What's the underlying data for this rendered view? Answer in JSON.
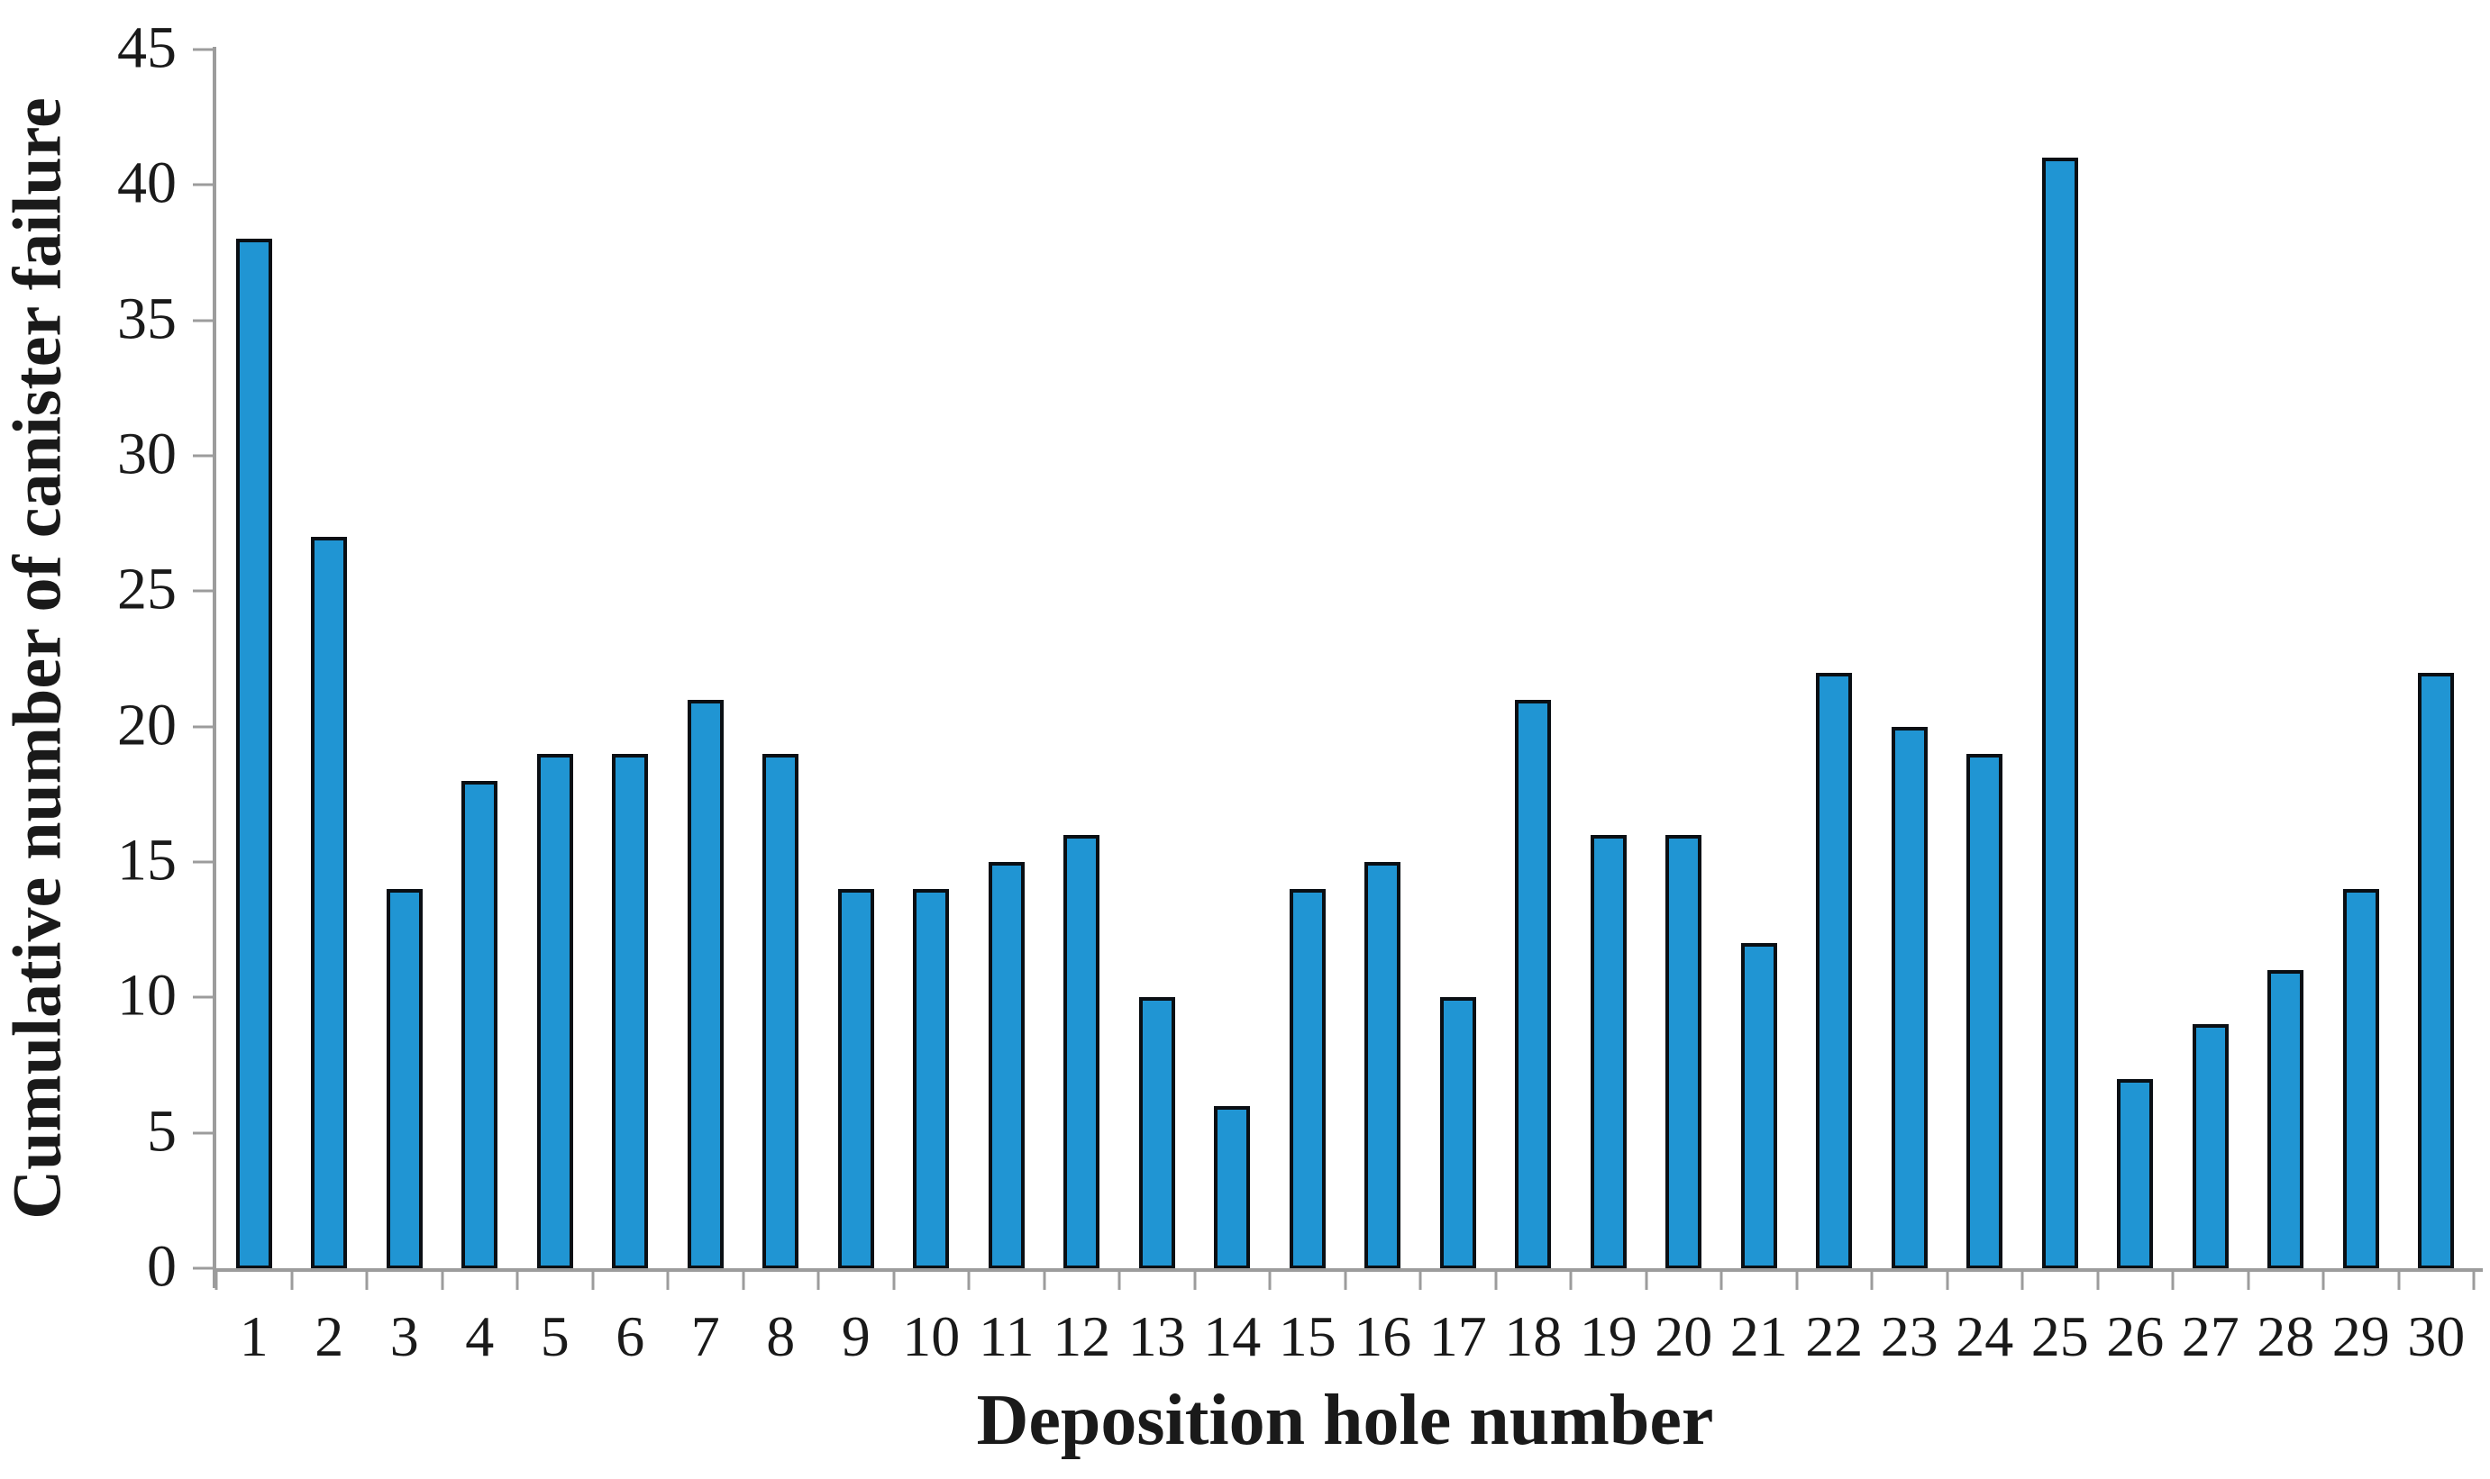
{
  "figure": {
    "background": "#ffffff",
    "text_color": "#1a1a1a"
  },
  "chart_data": {
    "type": "bar",
    "title": "",
    "xlabel": "Deposition hole number",
    "ylabel": "Cumulative number of canister failure",
    "categories": [
      "1",
      "2",
      "3",
      "4",
      "5",
      "6",
      "7",
      "8",
      "9",
      "10",
      "11",
      "12",
      "13",
      "14",
      "15",
      "16",
      "17",
      "18",
      "19",
      "20",
      "21",
      "22",
      "23",
      "24",
      "25",
      "26",
      "27",
      "28",
      "29",
      "30"
    ],
    "values": [
      38,
      27,
      14,
      18,
      19,
      19,
      21,
      19,
      14,
      14,
      15,
      16,
      10,
      6,
      14,
      15,
      10,
      21,
      16,
      16,
      12,
      22,
      20,
      19,
      41,
      7,
      9,
      11,
      14,
      22
    ],
    "ylim": [
      0,
      45
    ],
    "yticks": [
      0,
      5,
      10,
      15,
      20,
      25,
      30,
      35,
      40,
      45
    ],
    "grid": false,
    "legend_position": "none",
    "bar_color": "#2095d3",
    "bar_border_color": "#0a0f14",
    "axis_color": "#9c9c9c"
  }
}
